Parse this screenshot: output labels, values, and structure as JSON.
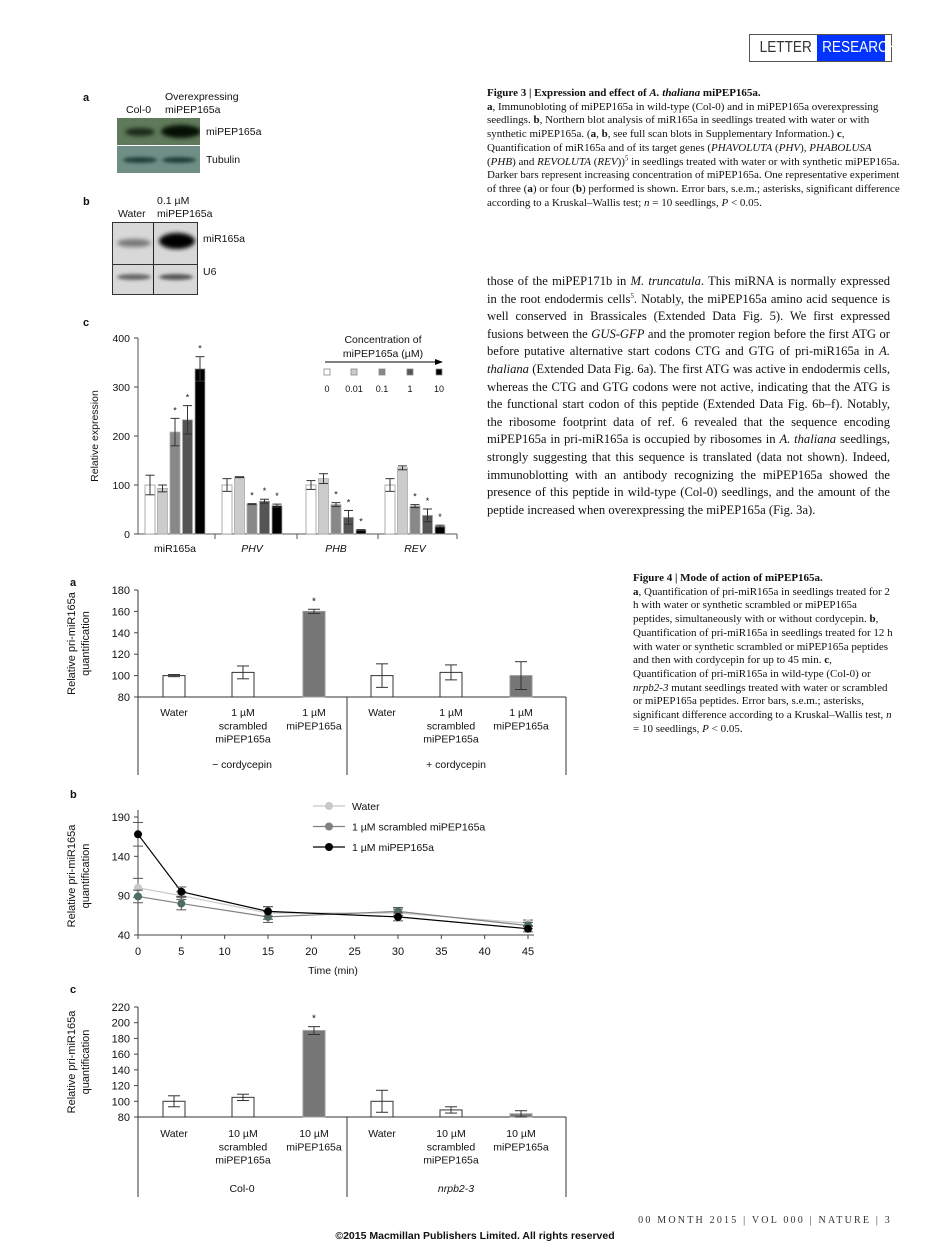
{
  "header": {
    "letter": "LETTER",
    "research": "RESEARCH",
    "accent": "#0033ff"
  },
  "fig3": {
    "a": {
      "panel": "a",
      "col_labels": [
        "Col-0",
        "Overexpressing\nmiPEP165a"
      ],
      "row_labels": [
        "miPEP165a",
        "Tubulin"
      ]
    },
    "b": {
      "panel": "b",
      "col_labels": [
        "Water",
        "0.1 µM\nmiPEP165a"
      ],
      "row_labels": [
        "miR165a",
        "U6"
      ]
    },
    "c": {
      "panel": "c"
    },
    "caption": {
      "title": [
        {
          "t": "Figure 3 | Expression and effect of ",
          "s": "b"
        },
        {
          "t": "A. thaliana",
          "s": "bi"
        },
        {
          "t": " miPEP165a.",
          "s": "b"
        }
      ],
      "body": [
        {
          "t": "a",
          "s": "b"
        },
        {
          "t": ", Immunobloting of miPEP165a in wild-type (Col-0) and in miPEP165a overexpressing seedlings. "
        },
        {
          "t": "b",
          "s": "b"
        },
        {
          "t": ", Northern blot analysis of miR165a in seedlings treated with water or with synthetic miPEP165a. ("
        },
        {
          "t": "a",
          "s": "b"
        },
        {
          "t": ", "
        },
        {
          "t": "b",
          "s": "b"
        },
        {
          "t": ", see full scan blots in Supplementary Information.) "
        },
        {
          "t": "c",
          "s": "b"
        },
        {
          "t": ", Quantification of miR165a and of its target genes ("
        },
        {
          "t": "PHAVOLUTA",
          "s": "i"
        },
        {
          "t": " ("
        },
        {
          "t": "PHV",
          "s": "i"
        },
        {
          "t": "), "
        },
        {
          "t": "PHABOLUSA",
          "s": "i"
        },
        {
          "t": " ("
        },
        {
          "t": "PHB",
          "s": "i"
        },
        {
          "t": ") and "
        },
        {
          "t": "REVOLUTA",
          "s": "i"
        },
        {
          "t": " ("
        },
        {
          "t": "REV",
          "s": "i"
        },
        {
          "t": "))"
        },
        {
          "t": "5",
          "s": "sup"
        },
        {
          "t": " in seedlings treated with water or with synthetic miPEP165a. Darker bars represent increasing concentration of miPEP165a. One representative experiment of three ("
        },
        {
          "t": "a",
          "s": "b"
        },
        {
          "t": ") or four ("
        },
        {
          "t": "b",
          "s": "b"
        },
        {
          "t": ") performed is shown. Error bars, s.e.m.; asterisks, significant difference according to a Kruskal–Wallis test; "
        },
        {
          "t": "n",
          "s": "i"
        },
        {
          "t": " = 10 seedlings, "
        },
        {
          "t": "P",
          "s": "i"
        },
        {
          "t": " < 0.05."
        }
      ]
    }
  },
  "body_text": [
    {
      "t": "those of the miPEP171b in "
    },
    {
      "t": "M. truncatula",
      "s": "i"
    },
    {
      "t": ". This miRNA is normally ex­pressed in the root endodermis cells"
    },
    {
      "t": "5",
      "s": "sup"
    },
    {
      "t": ". Notably, the miPEP165a amino acid sequence is well conserved in Brassicales (Extended Data Fig. 5). We first expressed fusions between the "
    },
    {
      "t": "GUS-GFP",
      "s": "i"
    },
    {
      "t": " and the promoter region before the first ATG or before putative alternative start codons CTG and GTG of pri-miR165a in "
    },
    {
      "t": "A. thaliana",
      "s": "i"
    },
    {
      "t": " (Extended Data Fig. 6a). The first ATG was active in endodermis cells, whereas the CTG and GTG codons were not active, indicating that the ATG is the functional start codon of this peptide (Extended Data Fig. 6b–f). Notably, the ribosome footprint data of ref. 6 revealed that the sequence encoding miPEP165a in pri-miR165a is occupied by ribosomes in "
    },
    {
      "t": "A. thaliana",
      "s": "i"
    },
    {
      "t": " seedlings, strongly suggesting that this sequence is translated (data not shown). Indeed, immunoblotting with an antibody recognizing the miPEP165a showed the presence of this peptide in wild-type (Col-0) seedlings, and the amount of the peptide increased when overexpres­sing the miPEP165a (Fig. 3a)."
    }
  ],
  "fig4": {
    "caption": {
      "title": [
        {
          "t": "Figure 4 | Mode of action of miPEP165a.",
          "s": "b"
        }
      ],
      "body": [
        {
          "t": "a",
          "s": "b"
        },
        {
          "t": ", Quantification of pri-miR165a in seedlings treated for 2 h with water or synthetic scrambled or miPEP165a peptides, simultaneously with or without cordycepin. "
        },
        {
          "t": "b",
          "s": "b"
        },
        {
          "t": ", Quantification of pri-miR165a in seedlings treated for 12 h with water or synthetic scrambled or miPEP165a peptides and then with cordycepin for up to 45 min. "
        },
        {
          "t": "c",
          "s": "b"
        },
        {
          "t": ", Quantification of pri-miR165a in wild-type (Col-0) or "
        },
        {
          "t": "nrpb2-3",
          "s": "i"
        },
        {
          "t": " mutant seedlings treated with water or scrambled or miPEP165a peptides. Error bars, s.e.m.; asterisks, significant difference according to a Kruskal–Wallis test, "
        },
        {
          "t": "n",
          "s": "i"
        },
        {
          "t": " = 10 seedlings, "
        },
        {
          "t": "P",
          "s": "i"
        },
        {
          "t": " < 0.05."
        }
      ]
    },
    "panels": [
      "a",
      "b",
      "c"
    ]
  },
  "chart_data": [
    {
      "id": "fig3c",
      "type": "bar",
      "ylabel": "Relative expression",
      "ylim": [
        0,
        400
      ],
      "yticks": [
        0,
        100,
        200,
        300,
        400
      ],
      "categories": [
        {
          "label": "miR165a",
          "italic": false
        },
        {
          "label": "PHV",
          "italic": true
        },
        {
          "label": "PHB",
          "italic": true
        },
        {
          "label": "REV",
          "italic": true
        }
      ],
      "legend": {
        "title": [
          "Concentration of",
          "miPEP165a (µM)"
        ],
        "placement": "top-right"
      },
      "series": [
        {
          "name": "0",
          "color": "#ffffff",
          "values": [
            100,
            100,
            100,
            100
          ],
          "errors": [
            20,
            13,
            9,
            13
          ],
          "significant": [
            false,
            false,
            false,
            false
          ]
        },
        {
          "name": "0.01",
          "color": "#cccccc",
          "values": [
            93,
            116,
            113,
            135
          ],
          "errors": [
            7,
            1,
            10,
            4
          ],
          "significant": [
            false,
            false,
            false,
            false
          ]
        },
        {
          "name": "0.1",
          "color": "#888888",
          "values": [
            208,
            61,
            60,
            57
          ],
          "errors": [
            28,
            1,
            4,
            3
          ],
          "significant": [
            true,
            true,
            true,
            true
          ]
        },
        {
          "name": "1",
          "color": "#555555",
          "values": [
            233,
            67,
            34,
            38
          ],
          "errors": [
            29,
            4,
            14,
            13
          ],
          "significant": [
            true,
            true,
            true,
            true
          ]
        },
        {
          "name": "10",
          "color": "#000000",
          "values": [
            337,
            58,
            8,
            16
          ],
          "errors": [
            25,
            3,
            1,
            2
          ],
          "significant": [
            true,
            true,
            true,
            true
          ]
        }
      ]
    },
    {
      "id": "fig4a",
      "type": "bar",
      "ylabel": [
        "Relative pri-miR165a",
        "quantification"
      ],
      "ylim": [
        80,
        180
      ],
      "yticks": [
        80,
        100,
        120,
        140,
        160,
        180
      ],
      "categories": [
        [
          "Water"
        ],
        [
          "1 µM",
          "scrambled",
          "miPEP165a"
        ],
        [
          "1 µM",
          "miPEP165a"
        ],
        [
          "Water"
        ],
        [
          "1 µM",
          "scrambled",
          "miPEP165a"
        ],
        [
          "1 µM",
          "miPEP165a"
        ]
      ],
      "groups": [
        {
          "label": "− cordycepin",
          "italic": false
        },
        {
          "label": "+ cordycepin",
          "italic": false
        }
      ],
      "values": [
        100,
        103,
        160,
        100,
        103,
        100
      ],
      "errors": [
        1,
        6,
        2,
        11,
        7,
        13
      ],
      "colors": [
        "#ffffff",
        "#ffffff",
        "#777777",
        "#ffffff",
        "#ffffff",
        "#777777"
      ],
      "significant": [
        false,
        false,
        true,
        false,
        false,
        false
      ]
    },
    {
      "id": "fig4b",
      "type": "line",
      "ylabel": [
        "Relative pri-miR165a",
        "quantification"
      ],
      "xlabel": "Time (min)",
      "xlim": [
        0,
        45
      ],
      "xticks": [
        0,
        5,
        10,
        15,
        20,
        25,
        30,
        35,
        40,
        45
      ],
      "ylim": [
        40,
        190
      ],
      "yticks": [
        40,
        90,
        140,
        190
      ],
      "legend": {
        "placement": "top-right"
      },
      "x": [
        0,
        5,
        15,
        30,
        45
      ],
      "series": [
        {
          "name": "Water",
          "color": "#c8c8c8",
          "values": [
            100,
            90,
            68,
            68,
            55
          ],
          "errors": [
            12,
            5,
            8,
            5,
            4
          ]
        },
        {
          "name": "1 µM scrambled miPEP165a",
          "color": "#808080",
          "values": [
            89,
            80,
            63,
            70,
            52
          ],
          "errors": [
            8,
            8,
            7,
            5,
            4
          ]
        },
        {
          "name": "1 µM miPEP165a",
          "color": "#000000",
          "values": [
            168,
            95,
            70,
            63,
            48
          ],
          "errors": [
            15,
            6,
            6,
            5,
            4
          ]
        }
      ]
    },
    {
      "id": "fig4c",
      "type": "bar",
      "ylabel": [
        "Relative pri-miR165a",
        "quantification"
      ],
      "ylim": [
        80,
        220
      ],
      "yticks": [
        80,
        100,
        120,
        140,
        160,
        180,
        200,
        220
      ],
      "categories": [
        [
          "Water"
        ],
        [
          "10 µM",
          "scrambled",
          "miPEP165a"
        ],
        [
          "10 µM",
          "miPEP165a"
        ],
        [
          "Water"
        ],
        [
          "10 µM",
          "scrambled",
          "miPEP165a"
        ],
        [
          "10 µM",
          "miPEP165a"
        ]
      ],
      "groups": [
        {
          "label": "Col-0",
          "italic": false
        },
        {
          "label": "nrpb2-3",
          "italic": true
        }
      ],
      "values": [
        100,
        105,
        190,
        100,
        89,
        84
      ],
      "errors": [
        7,
        4,
        5,
        14,
        4,
        4
      ],
      "colors": [
        "#ffffff",
        "#ffffff",
        "#777777",
        "#ffffff",
        "#ffffff",
        "#777777"
      ],
      "significant": [
        false,
        false,
        true,
        false,
        false,
        false
      ]
    }
  ],
  "footer": {
    "folio": "00 MONTH 2015 | VOL 000 | NATURE | 3",
    "copyright": "©2015 Macmillan Publishers Limited. All rights reserved"
  }
}
